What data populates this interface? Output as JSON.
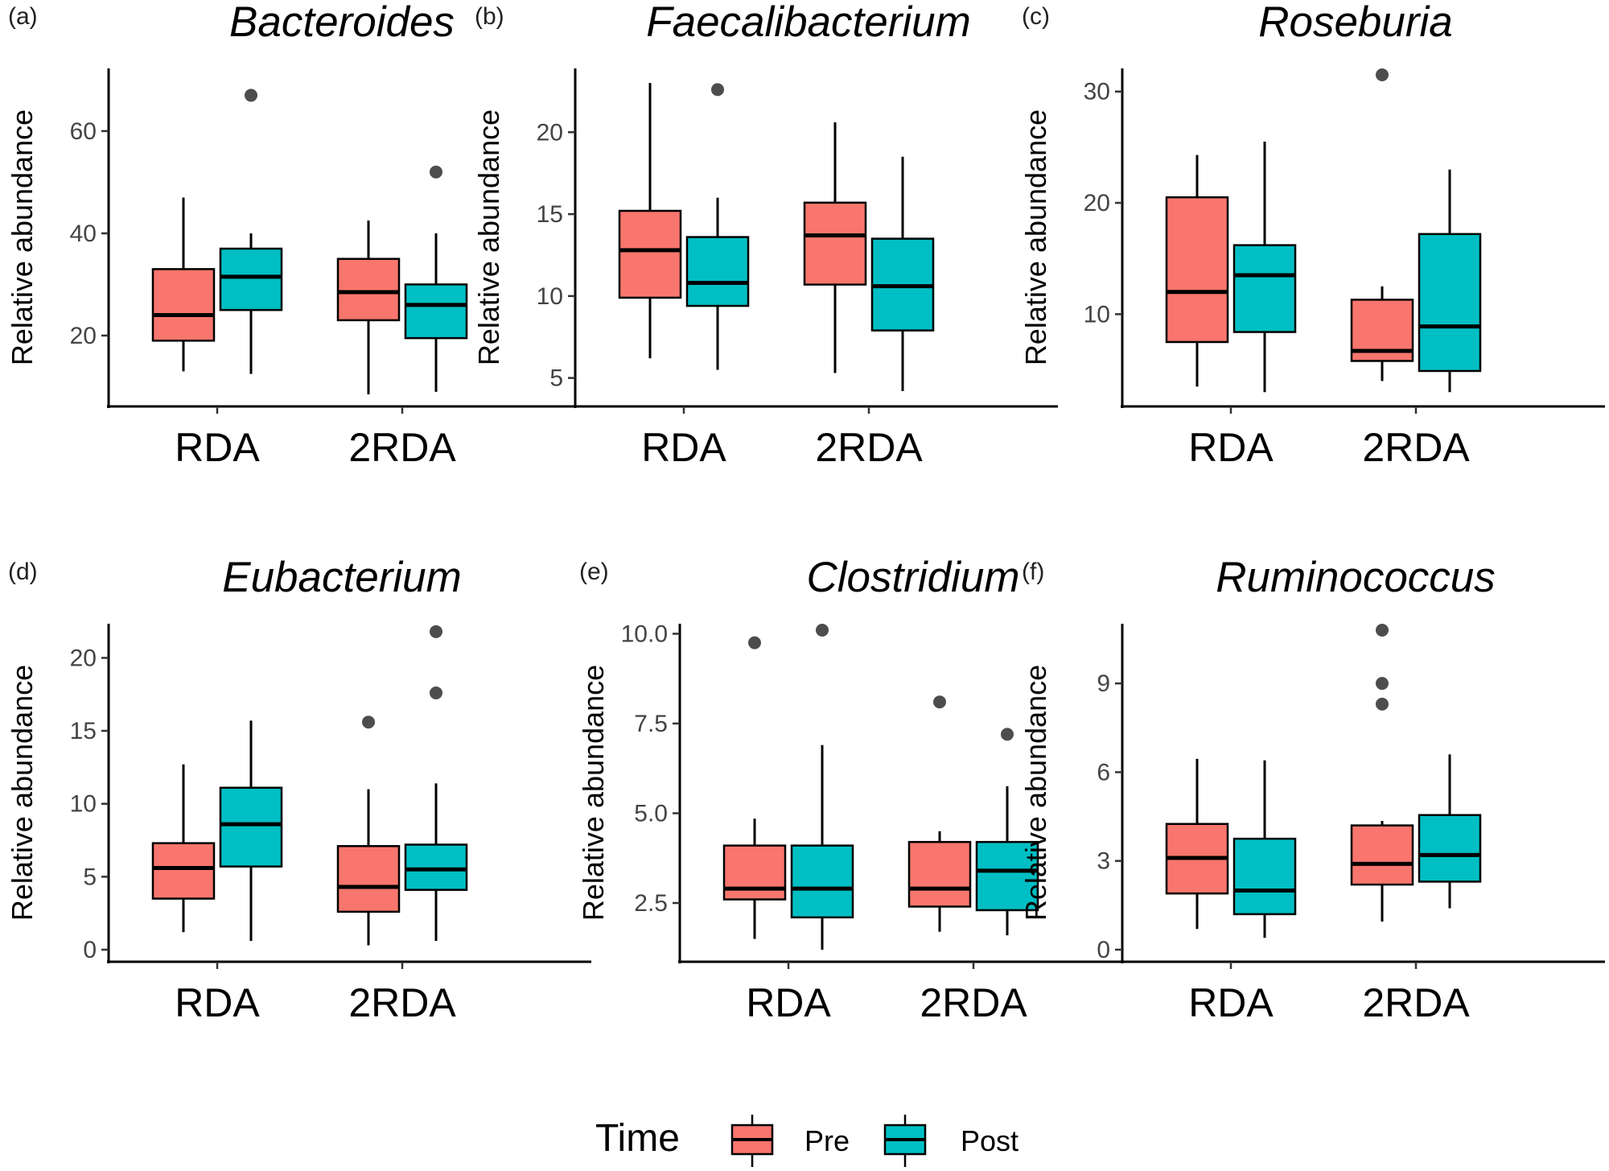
{
  "chart_data": [
    {
      "type": "boxplot",
      "panel_label": "(a)",
      "title": "Bacteroides",
      "ylabel": "Relative abundance",
      "xlabel": "",
      "categories": [
        "RDA",
        "2RDA"
      ],
      "ylim": [
        8.5,
        71
      ],
      "yticks": [
        20,
        40,
        60
      ],
      "ytick_labels": [
        "20",
        "40",
        "60"
      ],
      "series": [
        {
          "name": "Pre",
          "boxes": [
            {
              "whisker_low": 13,
              "q1": 19,
              "median": 24,
              "q3": 33,
              "whisker_high": 47,
              "outliers": []
            },
            {
              "whisker_low": 8.5,
              "q1": 23,
              "median": 28.5,
              "q3": 35,
              "whisker_high": 42.5,
              "outliers": []
            }
          ]
        },
        {
          "name": "Post",
          "boxes": [
            {
              "whisker_low": 12.5,
              "q1": 25,
              "median": 31.5,
              "q3": 37,
              "whisker_high": 40,
              "outliers": [
                67
              ]
            },
            {
              "whisker_low": 9,
              "q1": 19.5,
              "median": 26,
              "q3": 30,
              "whisker_high": 40,
              "outliers": [
                52
              ]
            }
          ]
        }
      ]
    },
    {
      "type": "boxplot",
      "panel_label": "(b)",
      "title": "Faecalibacterium",
      "ylabel": "Relative abundance",
      "xlabel": "",
      "categories": [
        "RDA",
        "2RDA"
      ],
      "ylim": [
        4,
        23.5
      ],
      "yticks": [
        5,
        10,
        15,
        20
      ],
      "ytick_labels": [
        "5",
        "10",
        "15",
        "20"
      ],
      "series": [
        {
          "name": "Pre",
          "boxes": [
            {
              "whisker_low": 6.2,
              "q1": 9.9,
              "median": 12.8,
              "q3": 15.2,
              "whisker_high": 23,
              "outliers": []
            },
            {
              "whisker_low": 5.3,
              "q1": 10.7,
              "median": 13.7,
              "q3": 15.7,
              "whisker_high": 20.6,
              "outliers": []
            }
          ]
        },
        {
          "name": "Post",
          "boxes": [
            {
              "whisker_low": 5.5,
              "q1": 9.4,
              "median": 10.8,
              "q3": 13.6,
              "whisker_high": 16,
              "outliers": [
                22.6
              ]
            },
            {
              "whisker_low": 4.2,
              "q1": 7.9,
              "median": 10.6,
              "q3": 13.5,
              "whisker_high": 18.5,
              "outliers": []
            }
          ]
        }
      ]
    },
    {
      "type": "boxplot",
      "panel_label": "(c)",
      "title": "Roseburia",
      "ylabel": "Relative abundance",
      "xlabel": "",
      "categories": [
        "RDA",
        "2RDA"
      ],
      "ylim": [
        2.8,
        31.5
      ],
      "yticks": [
        10,
        20,
        30
      ],
      "ytick_labels": [
        "10",
        "20",
        "30"
      ],
      "series": [
        {
          "name": "Pre",
          "boxes": [
            {
              "whisker_low": 3.5,
              "q1": 7.5,
              "median": 12,
              "q3": 20.5,
              "whisker_high": 24.3,
              "outliers": []
            },
            {
              "whisker_low": 4,
              "q1": 5.8,
              "median": 6.7,
              "q3": 11.3,
              "whisker_high": 12.5,
              "outliers": [
                31.5
              ]
            }
          ]
        },
        {
          "name": "Post",
          "boxes": [
            {
              "whisker_low": 3,
              "q1": 8.4,
              "median": 13.5,
              "q3": 16.2,
              "whisker_high": 25.5,
              "outliers": []
            },
            {
              "whisker_low": 3,
              "q1": 4.9,
              "median": 8.9,
              "q3": 17.2,
              "whisker_high": 23,
              "outliers": []
            }
          ]
        }
      ]
    },
    {
      "type": "boxplot",
      "panel_label": "(d)",
      "title": "Eubacterium",
      "ylabel": "Relative abundance",
      "xlabel": "",
      "categories": [
        "RDA",
        "2RDA"
      ],
      "ylim": [
        0,
        21.9
      ],
      "yticks": [
        0,
        5,
        10,
        15,
        20
      ],
      "ytick_labels": [
        "0",
        "5",
        "10",
        "15",
        "20"
      ],
      "series": [
        {
          "name": "Pre",
          "boxes": [
            {
              "whisker_low": 1.2,
              "q1": 3.5,
              "median": 5.6,
              "q3": 7.3,
              "whisker_high": 12.7,
              "outliers": []
            },
            {
              "whisker_low": 0.3,
              "q1": 2.6,
              "median": 4.3,
              "q3": 7.1,
              "whisker_high": 11,
              "outliers": [
                15.6
              ]
            }
          ]
        },
        {
          "name": "Post",
          "boxes": [
            {
              "whisker_low": 0.6,
              "q1": 5.7,
              "median": 8.6,
              "q3": 11.1,
              "whisker_high": 15.7,
              "outliers": []
            },
            {
              "whisker_low": 0.6,
              "q1": 4.1,
              "median": 5.5,
              "q3": 7.2,
              "whisker_high": 11.4,
              "outliers": [
                17.6,
                21.8
              ]
            }
          ]
        }
      ]
    },
    {
      "type": "boxplot",
      "panel_label": "(e)",
      "title": "Clostridium",
      "ylabel": "Relative abundance",
      "xlabel": "",
      "categories": [
        "RDA",
        "2RDA"
      ],
      "ylim": [
        1.2,
        10.1
      ],
      "yticks": [
        2.5,
        5.0,
        7.5,
        10.0
      ],
      "ytick_labels": [
        "2.5",
        "5.0",
        "7.5",
        "10.0"
      ],
      "series": [
        {
          "name": "Pre",
          "boxes": [
            {
              "whisker_low": 1.5,
              "q1": 2.6,
              "median": 2.9,
              "q3": 4.1,
              "whisker_high": 4.85,
              "outliers": [
                9.75
              ]
            },
            {
              "whisker_low": 1.7,
              "q1": 2.4,
              "median": 2.9,
              "q3": 4.2,
              "whisker_high": 4.5,
              "outliers": [
                8.1
              ]
            }
          ]
        },
        {
          "name": "Post",
          "boxes": [
            {
              "whisker_low": 1.2,
              "q1": 2.1,
              "median": 2.9,
              "q3": 4.1,
              "whisker_high": 6.9,
              "outliers": [
                10.1
              ]
            },
            {
              "whisker_low": 1.6,
              "q1": 2.3,
              "median": 3.4,
              "q3": 4.2,
              "whisker_high": 5.75,
              "outliers": [
                7.2
              ]
            }
          ]
        }
      ]
    },
    {
      "type": "boxplot",
      "panel_label": "(f)",
      "title": "Ruminococcus",
      "ylabel": "Relative abundance",
      "xlabel": "",
      "categories": [
        "RDA",
        "2RDA"
      ],
      "ylim": [
        0,
        10.8
      ],
      "yticks": [
        0,
        3,
        6,
        9
      ],
      "ytick_labels": [
        "0",
        "3",
        "6",
        "9"
      ],
      "series": [
        {
          "name": "Pre",
          "boxes": [
            {
              "whisker_low": 0.7,
              "q1": 1.9,
              "median": 3.1,
              "q3": 4.25,
              "whisker_high": 6.45,
              "outliers": []
            },
            {
              "whisker_low": 0.95,
              "q1": 2.2,
              "median": 2.9,
              "q3": 4.2,
              "whisker_high": 4.35,
              "outliers": [
                8.3,
                9,
                10.8
              ]
            }
          ]
        },
        {
          "name": "Post",
          "boxes": [
            {
              "whisker_low": 0.4,
              "q1": 1.2,
              "median": 2,
              "q3": 3.75,
              "whisker_high": 6.4,
              "outliers": []
            },
            {
              "whisker_low": 1.4,
              "q1": 2.3,
              "median": 3.2,
              "q3": 4.55,
              "whisker_high": 6.6,
              "outliers": []
            }
          ]
        }
      ]
    }
  ],
  "legend": {
    "title": "Time",
    "items": [
      {
        "label": "Pre",
        "color": "#F8766D"
      },
      {
        "label": "Post",
        "color": "#00BFC4"
      }
    ]
  },
  "colors": {
    "Pre": "#F8766D",
    "Post": "#00BFC4",
    "outlier": "#4d4d4d"
  }
}
